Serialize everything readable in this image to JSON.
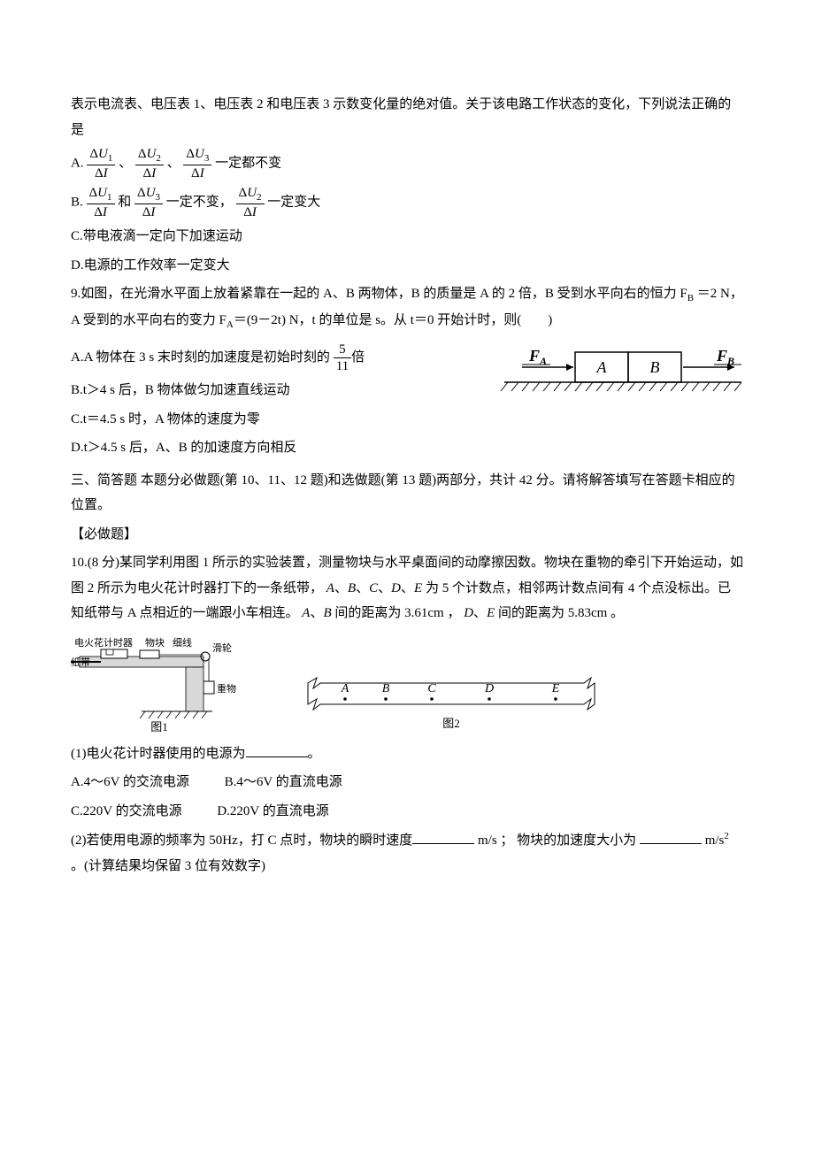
{
  "intro8": "表示电流表、电压表 1、电压表 2 和电压表 3 示数变化量的绝对值。关于该电路工作状态的变化，下列说法正确的是",
  "q8": {
    "A_pre": "A.",
    "A_tail": " 一定都不变",
    "B_pre": "B.",
    "B_mid": " 和 ",
    "B_mid2": " 一定不变，  ",
    "B_tail": " 一定变大",
    "C": "C.带电液滴一定向下加速运动",
    "D": "D.电源的工作效率一定变大",
    "f1n": "ΔU",
    "f1s": "1",
    "fd": "ΔI",
    "f2s": "2",
    "f3s": "3"
  },
  "q9": {
    "stem1": "9.如图，在光滑水平面上放着紧靠在一起的 A、B 两物体，B 的质量是 A 的 2 倍，B 受到水平向右的恒力 F",
    "stem1sub": "B",
    "stem2a": "＝2 N，A 受到的水平向右的变力 F",
    "stem2sub": "A",
    "stem2b": "＝(9－2t) N，t 的单位是 s。从 t＝0 开始计时，则(　　)",
    "Aa": "A.A 物体在 3 s 末时刻的加速度是初始时刻的",
    "Ab": "倍",
    "fracN": "5",
    "fracD": "11",
    "B": "B.t＞4 s 后，B 物体做匀加速直线运动",
    "C": "C.t＝4.5 s 时，A 物体的速度为零",
    "D": "D.t＞4.5 s 后，A、B 的加速度方向相反",
    "fig": {
      "FA": "F",
      "FAs": "A",
      "FB": "F",
      "FBs": "B",
      "boxA": "A",
      "boxB": "B"
    }
  },
  "sec3": "三、简答题  本题分必做题(第 10、11、12 题)和选做题(第 13 题)两部分，共计 42 分。请将解答填写在答题卡相应的位置。",
  "must": "【必做题】",
  "q10": {
    "stem": "10.(8 分)某同学利用图 1 所示的实验装置，测量物块与水平桌面间的动摩擦因数。物块在重物的牵引下开始运动，如图 2 所示为电火花计时器打下的一条纸带，",
    "stem_i1": "A",
    "stem_m1": "、",
    "stem_i2": "B",
    "stem_m2": "、",
    "stem_i3": "C",
    "stem_m3": "、",
    "stem_i4": "D",
    "stem_m4": "、",
    "stem_i5": "E",
    "stem_tail1": " 为 5 个计数点，相邻两计数点间有 4 个点没标出。已知纸带与 A 点相近的一端跟小车相连。",
    "stem_i6": "A",
    "stem_m5": "、",
    "stem_i7": "B",
    "stem_tail2": " 间的距离为 3.61cm ， ",
    "stem_i8": "D",
    "stem_m6": "、",
    "stem_i9": "E",
    "stem_tail3": " 间的距离为 5.83cm 。",
    "fig1": {
      "timer": "电火花计时器",
      "block": "物块",
      "string": "细线",
      "pulley": "滑轮",
      "tape": "纸带",
      "weight": "重物",
      "label": "图1"
    },
    "fig2": {
      "A": "A",
      "B": "B",
      "C": "C",
      "D": "D",
      "E": "E",
      "label": "图2",
      "positions": [
        50,
        96,
        148,
        213,
        288
      ]
    },
    "p1": "(1)电火花计时器使用的电源为",
    "p1tail": "。",
    "optA": "A.4～6V 的交流电源",
    "optB": "B.4～6V 的直流电源",
    "optC": "C.220V 的交流电源",
    "optD": "D.220V 的直流电源",
    "p2a": "(2)若使用电源的频率为 50Hz，打 C 点时，物块的瞬时速度",
    "p2b": " m/s ； 物块的加速度大小为",
    "p2c": " m/s",
    "p2sup": "2",
    "p2d": " 。(计算结果均保留 3 位有效数字)"
  },
  "colors": {
    "text": "#000000",
    "bg": "#ffffff",
    "hatch": "#000000"
  }
}
